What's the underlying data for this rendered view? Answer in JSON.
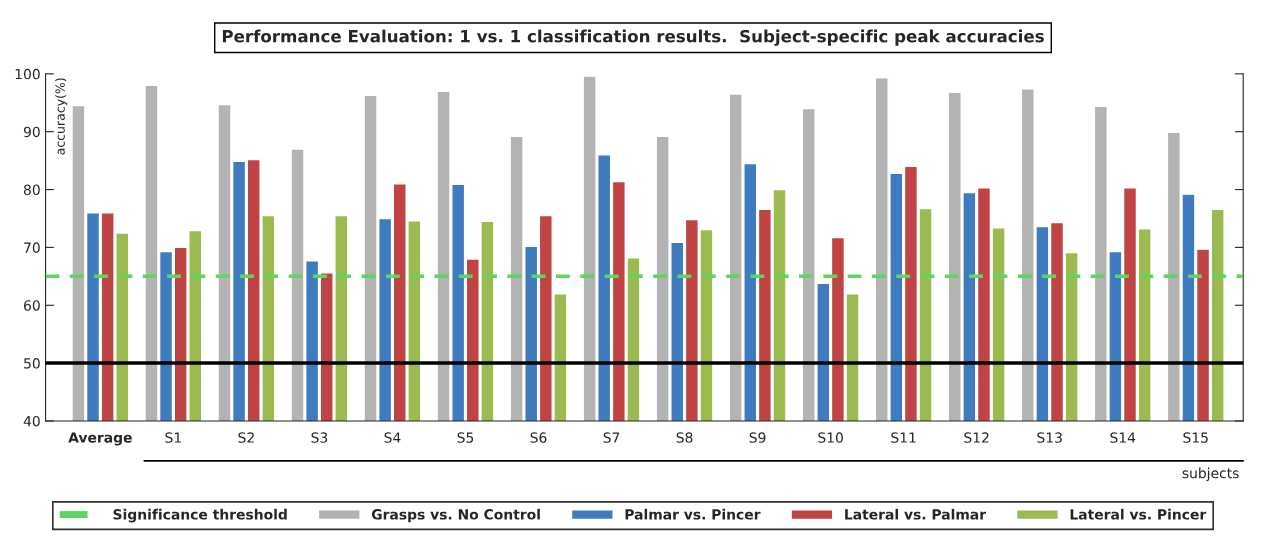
{
  "chart_data": {
    "type": "bar",
    "title": "Performance Evaluation: 1 vs. 1 classification results.  Subject-specific peak accuracies",
    "ylabel": "accuracy(%)",
    "xlabel": "subjects",
    "categories": [
      "Average",
      "S1",
      "S2",
      "S3",
      "S4",
      "S5",
      "S6",
      "S7",
      "S8",
      "S9",
      "S10",
      "S11",
      "S12",
      "S13",
      "S14",
      "S15"
    ],
    "series": [
      {
        "name": "Grasps vs. No Control",
        "color": "#b3b3b3",
        "values": [
          94.5,
          98,
          94.7,
          87,
          96.3,
          97,
          89.2,
          99.6,
          89.2,
          96.5,
          94,
          99.3,
          96.8,
          97.4,
          94.4,
          89.9
        ]
      },
      {
        "name": "Palmar vs. Pincer",
        "color": "#3f7cbf",
        "values": [
          76,
          69.3,
          84.9,
          67.7,
          75,
          80.9,
          70.2,
          86,
          70.9,
          84.5,
          63.8,
          82.8,
          79.5,
          73.6,
          69.3,
          79.2
        ]
      },
      {
        "name": "Lateral vs. Palmar",
        "color": "#c04443",
        "values": [
          76,
          70,
          85.2,
          65.6,
          81,
          68,
          75.5,
          81.4,
          74.8,
          76.6,
          71.7,
          84,
          80.3,
          74.3,
          80.3,
          69.7
        ]
      },
      {
        "name": "Lateral vs. Pincer",
        "color": "#9bbb50",
        "values": [
          72.5,
          72.9,
          75.5,
          75.5,
          74.6,
          74.5,
          62,
          68.2,
          73.1,
          80,
          62,
          76.7,
          73.4,
          69.1,
          73.2,
          76.6
        ]
      }
    ],
    "ylim": [
      40,
      100
    ],
    "yticks": [
      40,
      50,
      60,
      70,
      80,
      90,
      100
    ],
    "ref_lines": [
      {
        "axis": "y",
        "value": 65,
        "label": "Significance threshold",
        "color": "#5ed65e",
        "line_style": "dashed"
      },
      {
        "axis": "y",
        "value": 50,
        "color": "#000000",
        "line_style": "solid"
      }
    ],
    "grid": false,
    "legend": "bottom"
  }
}
